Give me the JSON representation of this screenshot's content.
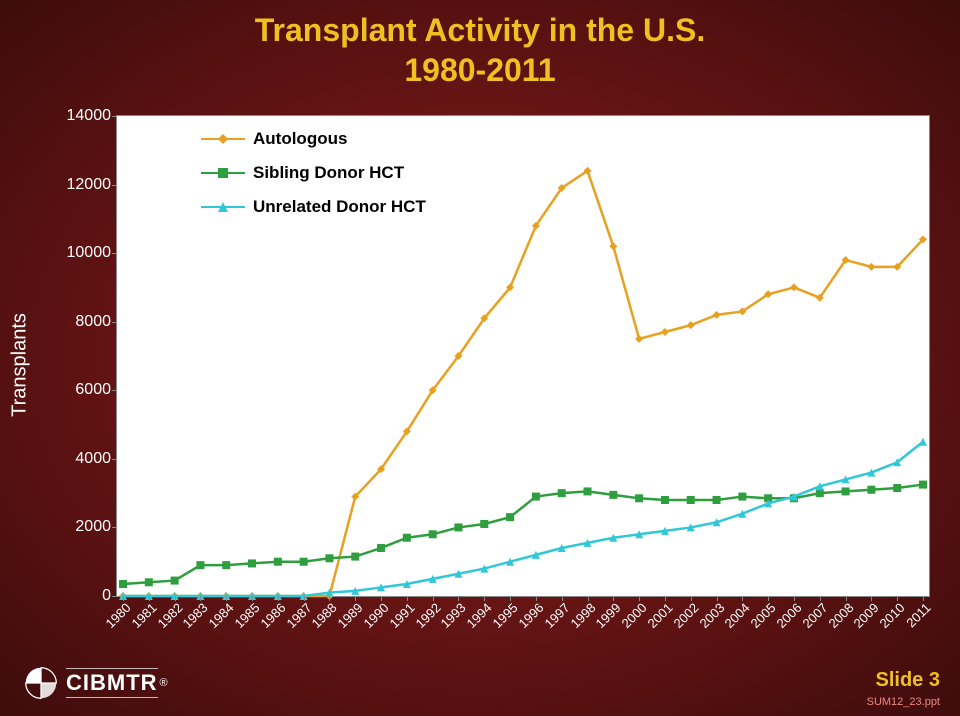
{
  "title_line1": "Transplant Activity in the U.S.",
  "title_line2": "1980-2011",
  "chart": {
    "type": "line",
    "ylabel": "Transplants",
    "background_color": "#ffffff",
    "axis_color": "#888888",
    "ylim": [
      0,
      14000
    ],
    "ytick_step": 2000,
    "yticks": [
      0,
      2000,
      4000,
      6000,
      8000,
      10000,
      12000,
      14000
    ],
    "x_categories": [
      "1980",
      "1981",
      "1982",
      "1983",
      "1984",
      "1985",
      "1986",
      "1987",
      "1988",
      "1989",
      "1990",
      "1991",
      "1992",
      "1993",
      "1994",
      "1995",
      "1996",
      "1997",
      "1998",
      "1999",
      "2000",
      "2001",
      "2002",
      "2003",
      "2004",
      "2005",
      "2006",
      "2007",
      "2008",
      "2009",
      "2010",
      "2011"
    ],
    "line_width": 2.5,
    "marker_size": 8,
    "series": [
      {
        "name": "Autologous",
        "color": "#e8a020",
        "marker": "diamond",
        "values": [
          0,
          0,
          0,
          0,
          0,
          0,
          0,
          0,
          0,
          2900,
          3700,
          4800,
          6000,
          7000,
          8100,
          9000,
          10800,
          11900,
          12400,
          10200,
          7500,
          7700,
          7900,
          8200,
          8300,
          8800,
          9000,
          8700,
          9800,
          9600,
          9600,
          10400
        ]
      },
      {
        "name": "Sibling Donor HCT",
        "color": "#2e9e3e",
        "marker": "square",
        "values": [
          350,
          400,
          450,
          900,
          900,
          950,
          1000,
          1000,
          1100,
          1150,
          1400,
          1700,
          1800,
          2000,
          2100,
          2300,
          2900,
          3000,
          3050,
          2950,
          2850,
          2800,
          2800,
          2800,
          2900,
          2850,
          2850,
          3000,
          3050,
          3100,
          3150,
          3250
        ]
      },
      {
        "name": "Unrelated Donor HCT",
        "color": "#30c8d8",
        "marker": "triangle",
        "values": [
          0,
          0,
          0,
          0,
          0,
          0,
          0,
          0,
          100,
          150,
          250,
          350,
          500,
          650,
          800,
          1000,
          1200,
          1400,
          1550,
          1700,
          1800,
          1900,
          2000,
          2150,
          2400,
          2700,
          2900,
          3200,
          3400,
          3600,
          3900,
          4500
        ]
      }
    ],
    "legend_position": "top-left",
    "legend_fontsize": 17,
    "title_fontsize": 32,
    "title_color": "#f0c020",
    "tick_fontsize": 16,
    "tick_color": "#ffffff"
  },
  "footer": {
    "logo": "CIBMTR",
    "slide_label": "Slide 3",
    "file_ref": "SUM12_23.ppt"
  }
}
